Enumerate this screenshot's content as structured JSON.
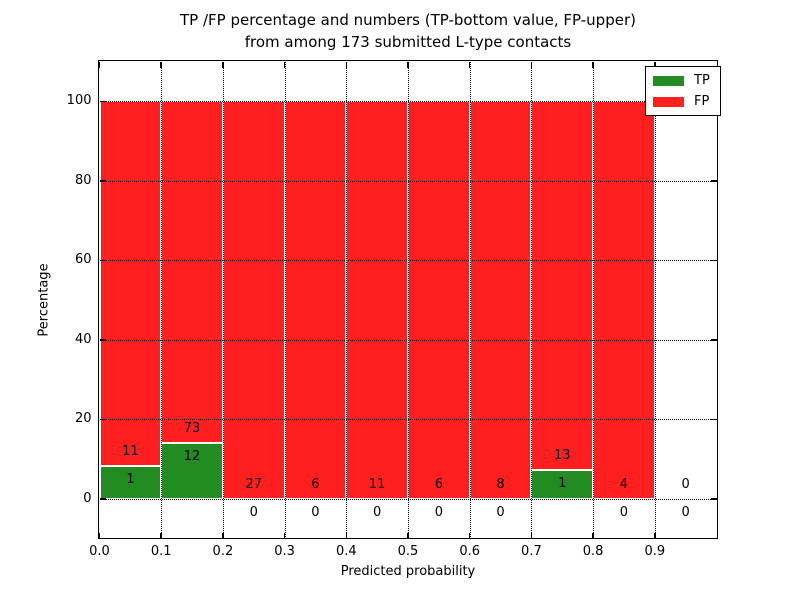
{
  "figure": {
    "title_line1": "TP /FP percentage and numbers (TP-bottom value, FP-upper)",
    "title_line2": "from among 173 submitted L-type contacts"
  },
  "chart_data": {
    "type": "bar",
    "stacked": true,
    "title": "TP /FP percentage and numbers (TP-bottom value, FP-upper)\nfrom among 173 submitted L-type contacts",
    "xlabel": "Predicted probability",
    "ylabel": "Percentage",
    "xlim": [
      0.0,
      1.0
    ],
    "ylim": [
      -10,
      110
    ],
    "bin_edges": [
      0.0,
      0.1,
      0.2,
      0.3,
      0.4,
      0.5,
      0.6,
      0.7,
      0.8,
      0.9,
      1.0
    ],
    "categories": [
      "0.0-0.1",
      "0.1-0.2",
      "0.2-0.3",
      "0.3-0.4",
      "0.4-0.5",
      "0.5-0.6",
      "0.6-0.7",
      "0.7-0.8",
      "0.8-0.9",
      "0.9-1.0"
    ],
    "series": [
      {
        "name": "TP",
        "color": "#228b22",
        "values": [
          1,
          12,
          0,
          0,
          0,
          0,
          0,
          1,
          0,
          0
        ]
      },
      {
        "name": "FP",
        "color": "#ff1f1f",
        "values": [
          11,
          73,
          27,
          6,
          11,
          6,
          8,
          13,
          4,
          0
        ]
      }
    ],
    "value_semantics": "counts per bin; bar heights are percentage shares summing to 100% in each non-empty bin; TP count printed below FP count at the TP segment boundary",
    "total_contacts": 173,
    "x_ticks": [
      "0.0",
      "0.1",
      "0.2",
      "0.3",
      "0.4",
      "0.5",
      "0.6",
      "0.7",
      "0.8",
      "0.9"
    ],
    "y_ticks": [
      0,
      20,
      40,
      60,
      80,
      100
    ],
    "grid": {
      "style": "dotted",
      "color": "#000000",
      "above_bars": true
    },
    "legend": {
      "position": "upper right",
      "entries": [
        {
          "label": "TP",
          "color": "#228b22"
        },
        {
          "label": "FP",
          "color": "#ff1f1f"
        }
      ]
    },
    "bar_edge_color": "#ffffff",
    "annotation_color": "#000000"
  }
}
